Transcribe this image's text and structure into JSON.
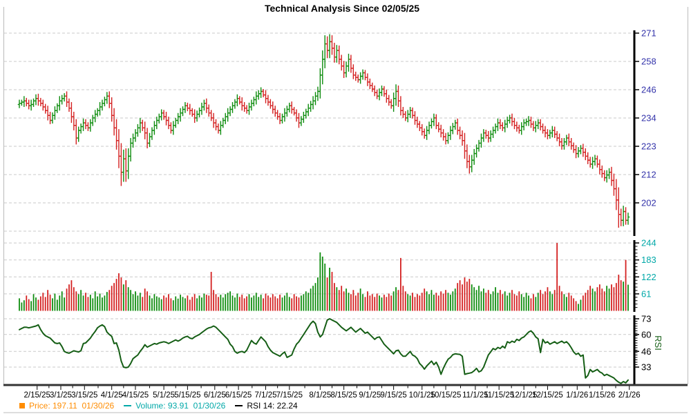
{
  "title": "Technical Analysis Since 02/05/25",
  "legend": {
    "price_label": "Price: 197.11  01/30/26",
    "volume_label": "Volume: 93.91  01/30/26",
    "rsi_label": "RSI 14: 22.24"
  },
  "colors": {
    "up": "#0e8c0e",
    "down": "#d42020",
    "rsi_line": "#155e15",
    "price_axis_text": "#3333aa",
    "volume_axis_text": "#00a8a8",
    "rsi_axis_text": "#000000",
    "rsi_axis_title": "#155e15",
    "legend_price": "#ff8c00",
    "legend_volume": "#00a8a8",
    "legend_rsi": "#000000",
    "grid": "#c9c9c9",
    "axis": "#000000",
    "frame": "#bbbbbb"
  },
  "chart_data": {
    "type": "ohlc",
    "title": "Technical Analysis Since 02/05/25",
    "start_date": "02/05/25",
    "last": {
      "date": "01/30/26",
      "price": 197.11,
      "volume": 93.91,
      "rsi14": 22.24
    },
    "price_axis": {
      "scale": "log",
      "labels": [
        271,
        258,
        246,
        234,
        223,
        212,
        202
      ],
      "extra_gridlines": 1
    },
    "volume_axis": {
      "labels": [
        244,
        183,
        122,
        61
      ],
      "ylim": [
        0,
        244
      ]
    },
    "rsi_axis": {
      "labels": [
        73,
        60,
        46,
        33
      ],
      "title": "RSI"
    },
    "x_labels": [
      {
        "t": "2/15/25",
        "d": 7.5
      },
      {
        "t": "3/1/25",
        "d": 17.5
      },
      {
        "t": "3/15/25",
        "d": 27.5
      },
      {
        "t": "4/1/25",
        "d": 39
      },
      {
        "t": "4/15/25",
        "d": 49
      },
      {
        "t": "5/1/25",
        "d": 61
      },
      {
        "t": "5/15/25",
        "d": 71
      },
      {
        "t": "6/1/25",
        "d": 82.5
      },
      {
        "t": "6/15/25",
        "d": 92.5
      },
      {
        "t": "7/1/25",
        "d": 104
      },
      {
        "t": "7/15/25",
        "d": 114
      },
      {
        "t": "8/1/25",
        "d": 127
      },
      {
        "t": "8/15/25",
        "d": 137
      },
      {
        "t": "9/1/25",
        "d": 148
      },
      {
        "t": "9/15/25",
        "d": 158
      },
      {
        "t": "10/1/25",
        "d": 170
      },
      {
        "t": "10/15/25",
        "d": 180
      },
      {
        "t": "11/1/25",
        "d": 192.5
      },
      {
        "t": "11/15/25",
        "d": 202.5
      },
      {
        "t": "12/1/25",
        "d": 213
      },
      {
        "t": "12/15/25",
        "d": 223
      },
      {
        "t": "1/1/26",
        "d": 235.5
      },
      {
        "t": "1/15/26",
        "d": 246
      },
      {
        "t": "2/1/26",
        "d": 257.5
      }
    ],
    "bars": {
      "open_rule": "previous_close",
      "first_open": 239.5,
      "closes": [
        240,
        240.5,
        241,
        240,
        239,
        239.5,
        241,
        242,
        241,
        240,
        238.5,
        237,
        235,
        233,
        235,
        237,
        239,
        241,
        242,
        243,
        240.5,
        238,
        234.5,
        231,
        226,
        229,
        230.5,
        232,
        231,
        230,
        232,
        234,
        235.5,
        237,
        238.5,
        240,
        241.5,
        243,
        240,
        235,
        230,
        225,
        219,
        213,
        218,
        213.5,
        219,
        224,
        226,
        228,
        230,
        232,
        230,
        228,
        224,
        226.5,
        229,
        231,
        233,
        234.5,
        236,
        234.5,
        233,
        231,
        229,
        231,
        233,
        234.5,
        236,
        237.5,
        239,
        238,
        237,
        235.5,
        234,
        235.5,
        237,
        238.5,
        240,
        238,
        236,
        234,
        232,
        230.5,
        229,
        231,
        233,
        234.5,
        236,
        237.5,
        239,
        240.5,
        242,
        240.5,
        239,
        238,
        237,
        238.5,
        240,
        241.5,
        243,
        244,
        245,
        243.5,
        242,
        240.5,
        239,
        237.5,
        236,
        234.5,
        233,
        234.5,
        236,
        237.5,
        239,
        237.5,
        236,
        234,
        232,
        233.5,
        235,
        236.5,
        238,
        239.5,
        241,
        243,
        245,
        252,
        259,
        266,
        263,
        267,
        264,
        260,
        263,
        259,
        256,
        253,
        256,
        259,
        255,
        252,
        251,
        250,
        251.5,
        253,
        251,
        249,
        247.5,
        246,
        244.5,
        243,
        244.5,
        246,
        244,
        242,
        240.5,
        239,
        242,
        245,
        241,
        237,
        235.5,
        234,
        235.5,
        237,
        235,
        233,
        231.5,
        230,
        228.5,
        227,
        229,
        231,
        232.5,
        234,
        231,
        229.5,
        228,
        226.5,
        225,
        227,
        229,
        230.5,
        232,
        229,
        227,
        225,
        221,
        217,
        215,
        217.5,
        220,
        222,
        224,
        226,
        228,
        227,
        226,
        227.5,
        229,
        230.5,
        232,
        231,
        230,
        231.5,
        233,
        234,
        232.5,
        231,
        230,
        229,
        230.5,
        232,
        232.5,
        233,
        231.5,
        230,
        231,
        232,
        230.5,
        229,
        228,
        227,
        228,
        229,
        227.5,
        226,
        224.5,
        223,
        224.5,
        226,
        224.5,
        223,
        221.5,
        220,
        221,
        222,
        220.5,
        219,
        217.5,
        216,
        217,
        218,
        216,
        214,
        212.5,
        211,
        212,
        213,
        210,
        207,
        203,
        198,
        196,
        199,
        196,
        197.11
      ],
      "spreads": [
        3,
        2,
        4,
        2.5,
        3,
        4,
        2,
        3.5,
        4,
        2.5,
        3,
        2.5,
        4,
        3,
        2.5,
        3.5,
        2,
        4,
        3,
        2.5,
        4,
        3,
        5,
        4,
        5,
        3,
        2.5,
        3.5,
        3,
        2.5,
        3,
        2.5,
        3.5,
        2,
        4,
        3,
        2.5,
        3.5,
        4,
        5,
        6,
        7,
        9,
        10,
        7,
        8,
        6,
        4,
        3.5,
        3,
        3,
        4,
        2.5,
        5,
        4,
        3,
        2.5,
        3.5,
        3,
        2.5,
        3,
        2.5,
        4,
        3,
        2.5,
        3.5,
        2,
        3,
        4,
        2.5,
        3,
        2.5,
        3.5,
        2,
        4,
        3,
        2.5,
        3.5,
        3,
        4,
        3,
        2.5,
        4,
        3,
        2.5,
        3.5,
        2,
        3,
        4,
        2.5,
        3,
        2.5,
        3.5,
        2,
        4,
        3,
        2.5,
        3.5,
        3,
        2.5,
        4,
        3,
        3.5,
        2,
        4,
        3,
        2.5,
        3.5,
        3,
        2.5,
        3,
        2.5,
        4,
        3,
        2.5,
        3.5,
        2,
        3,
        4,
        2.5,
        3,
        2.5,
        3.5,
        3,
        4,
        3.5,
        4,
        6,
        8,
        8,
        7,
        7,
        6,
        5,
        5,
        4.5,
        4,
        4.5,
        4,
        5,
        4,
        3.5,
        3,
        2.5,
        3.5,
        3,
        2.5,
        3.5,
        3,
        2.5,
        3,
        2.5,
        3.5,
        3,
        2.5,
        3.5,
        3,
        2.5,
        5,
        6,
        5,
        4,
        3,
        2.5,
        3.5,
        3,
        2.5,
        3.5,
        3,
        2.5,
        3,
        2.5,
        3.5,
        3,
        2.5,
        3.5,
        3,
        2.5,
        3.5,
        3,
        3,
        2.5,
        3.5,
        3,
        2.5,
        3.5,
        3,
        4,
        6,
        5,
        5,
        4,
        3.5,
        3,
        2.5,
        3.5,
        3,
        2.5,
        3.5,
        3,
        3,
        2.5,
        3.5,
        3,
        2.5,
        3.5,
        3,
        2.5,
        3.5,
        3,
        3,
        2.5,
        3.5,
        3,
        2.5,
        3.5,
        3,
        2.5,
        3.5,
        3,
        3,
        2.5,
        3.5,
        3,
        2.5,
        3.5,
        3,
        2.5,
        3.5,
        3,
        3,
        2.5,
        3.5,
        3,
        2.5,
        3.5,
        3,
        2.5,
        3.5,
        3,
        3,
        2.5,
        3.5,
        3,
        2.5,
        3.5,
        3,
        2.5,
        3.5,
        3,
        4,
        5,
        7,
        9,
        4,
        4,
        3,
        3
      ]
    },
    "volumes": [
      45,
      30,
      38,
      55,
      42,
      35,
      60,
      48,
      40,
      52,
      65,
      50,
      75,
      58,
      45,
      62,
      40,
      55,
      70,
      48,
      80,
      95,
      110,
      85,
      70,
      60,
      75,
      55,
      65,
      50,
      58,
      45,
      70,
      52,
      62,
      48,
      55,
      68,
      75,
      90,
      100,
      115,
      135,
      120,
      95,
      110,
      85,
      75,
      60,
      70,
      55,
      65,
      50,
      80,
      70,
      55,
      45,
      60,
      52,
      48,
      42,
      55,
      48,
      60,
      45,
      38,
      52,
      44,
      58,
      50,
      45,
      55,
      40,
      50,
      60,
      45,
      55,
      48,
      62,
      58,
      55,
      140,
      75,
      60,
      50,
      58,
      48,
      60,
      65,
      70,
      55,
      48,
      62,
      50,
      58,
      45,
      52,
      60,
      48,
      55,
      65,
      50,
      58,
      45,
      62,
      55,
      48,
      60,
      52,
      45,
      58,
      48,
      55,
      65,
      50,
      45,
      60,
      52,
      48,
      55,
      60,
      70,
      65,
      80,
      90,
      100,
      120,
      210,
      195,
      170,
      120,
      155,
      140,
      100,
      85,
      75,
      90,
      70,
      80,
      65,
      60,
      75,
      55,
      65,
      80,
      60,
      50,
      70,
      55,
      60,
      50,
      62,
      55,
      48,
      58,
      50,
      62,
      55,
      70,
      85,
      75,
      190,
      90,
      70,
      60,
      55,
      65,
      50,
      60,
      55,
      65,
      80,
      70,
      60,
      75,
      58,
      65,
      55,
      70,
      62,
      75,
      65,
      58,
      70,
      80,
      100,
      110,
      95,
      120,
      105,
      115,
      95,
      85,
      75,
      90,
      70,
      80,
      65,
      75,
      60,
      70,
      85,
      65,
      75,
      60,
      70,
      55,
      65,
      75,
      60,
      55,
      70,
      60,
      50,
      65,
      55,
      45,
      60,
      50,
      65,
      75,
      60,
      70,
      85,
      70,
      60,
      75,
      244,
      90,
      70,
      60,
      50,
      65,
      55,
      45,
      35,
      25,
      40,
      55,
      65,
      75,
      90,
      80,
      70,
      85,
      95,
      80,
      70,
      90,
      80,
      95,
      85,
      100,
      130,
      110,
      105,
      183,
      94
    ],
    "rsi": [
      64,
      65,
      66,
      66,
      65.5,
      66,
      66.5,
      67,
      68,
      64,
      61,
      59,
      58,
      57,
      55,
      53,
      52.5,
      53,
      50,
      46,
      45,
      44.5,
      45.5,
      46.5,
      46,
      45.5,
      46.5,
      52.5,
      53,
      55,
      57,
      60,
      62.5,
      65.5,
      67,
      68,
      66.5,
      62,
      60,
      58.5,
      52.5,
      53,
      47,
      38,
      33,
      32.5,
      33,
      36,
      40,
      41.5,
      43,
      46,
      48.5,
      51.5,
      49.5,
      50.5,
      51.5,
      52.5,
      52,
      53,
      53.5,
      54,
      53.5,
      52.5,
      53.5,
      54.5,
      55.5,
      54.5,
      55.5,
      57,
      58,
      58.5,
      57,
      56.5,
      58,
      59,
      60,
      61.5,
      63,
      64.5,
      65.5,
      66,
      67,
      66,
      64,
      62,
      60,
      58,
      56,
      52,
      50,
      46,
      44.5,
      45.5,
      46,
      45,
      47,
      51,
      55,
      53,
      52,
      55,
      58,
      56,
      54,
      50,
      47,
      45,
      44,
      43,
      42,
      44,
      45.5,
      41,
      42,
      43,
      48,
      52,
      54,
      57,
      60,
      63,
      66,
      69,
      71,
      69,
      62,
      58,
      60,
      66,
      72,
      73,
      72,
      71,
      70,
      68,
      66,
      64.5,
      63,
      64.5,
      66,
      64,
      62,
      63.5,
      65,
      63,
      61,
      62,
      60,
      58,
      56,
      57.5,
      58,
      55,
      52,
      50,
      48,
      46,
      44,
      46.5,
      47,
      44,
      42,
      42,
      44,
      46,
      43,
      42,
      40,
      36,
      34,
      31.3,
      34,
      36,
      38,
      35,
      37,
      33,
      27,
      32,
      36,
      39.5,
      41,
      43.3,
      44,
      43.7,
      43.5,
      42,
      27,
      27.6,
      28,
      28.4,
      30,
      32,
      29,
      30,
      33,
      38,
      43,
      45.6,
      48.4,
      47.4,
      49.3,
      48.4,
      50.3,
      48.8,
      54,
      53,
      54.5,
      53.5,
      56,
      55,
      57,
      58,
      60,
      62,
      63,
      61,
      58,
      56.5,
      45,
      56,
      53,
      54,
      52,
      53,
      54,
      52.5,
      53.5,
      54.5,
      53,
      54,
      52,
      49,
      45.5,
      43.5,
      44.5,
      42,
      43,
      24,
      26,
      31,
      29,
      30,
      31,
      29,
      28,
      26,
      27,
      26,
      25,
      24,
      22,
      20.5,
      19.5,
      21,
      20,
      22.24
    ]
  }
}
